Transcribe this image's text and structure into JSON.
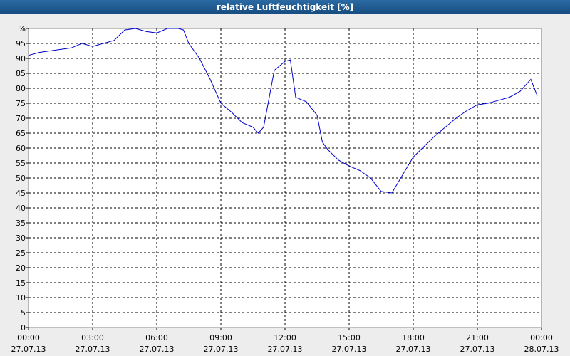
{
  "chart_data": {
    "type": "line",
    "title": "relative Luftfeuchtigkeit [%]",
    "xlim": [
      0,
      24
    ],
    "xticks": [
      {
        "value": 0,
        "label": [
          "00:00",
          "27.07.13"
        ]
      },
      {
        "value": 3,
        "label": [
          "03:00",
          "27.07.13"
        ]
      },
      {
        "value": 6,
        "label": [
          "06:00",
          "27.07.13"
        ]
      },
      {
        "value": 9,
        "label": [
          "09:00",
          "27.07.13"
        ]
      },
      {
        "value": 12,
        "label": [
          "12:00",
          "27.07.13"
        ]
      },
      {
        "value": 15,
        "label": [
          "15:00",
          "27.07.13"
        ]
      },
      {
        "value": 18,
        "label": [
          "18:00",
          "27.07.13"
        ]
      },
      {
        "value": 21,
        "label": [
          "21:00",
          "27.07.13"
        ]
      },
      {
        "value": 24,
        "label": [
          "00:00",
          "28.07.13"
        ]
      }
    ],
    "ylim": [
      0,
      100
    ],
    "yticks": [
      0,
      5,
      10,
      15,
      20,
      25,
      30,
      35,
      40,
      45,
      50,
      55,
      60,
      65,
      70,
      75,
      80,
      85,
      90,
      95,
      {
        "value": 100,
        "label": "%"
      }
    ],
    "grid": true,
    "series": [
      {
        "color": "#0000cc",
        "x": [
          0,
          0.5,
          1,
          1.5,
          2,
          2.5,
          3,
          3.5,
          4,
          4.5,
          5,
          5.5,
          6,
          6.5,
          7,
          7.25,
          7.5,
          8,
          8.5,
          9,
          9.5,
          10,
          10.5,
          10.75,
          11,
          11.5,
          12,
          12.25,
          12.5,
          13,
          13.5,
          13.75,
          14,
          14.5,
          15,
          15.5,
          16,
          16.5,
          17,
          17.5,
          18,
          18.5,
          19,
          19.5,
          20,
          20.5,
          21,
          21.5,
          22,
          22.5,
          23,
          23.5,
          23.8
        ],
        "values": [
          91,
          92,
          92.5,
          93,
          93.5,
          95,
          94,
          95,
          96,
          99.5,
          100,
          99,
          98.5,
          100,
          100,
          99.5,
          95,
          90,
          83,
          75,
          72,
          68.5,
          67,
          65,
          67,
          86,
          89,
          89.5,
          77,
          75.5,
          71,
          62,
          59.5,
          56,
          54,
          52.5,
          50,
          45.5,
          45,
          51,
          57,
          60.5,
          64,
          67,
          70,
          72.5,
          74.5,
          75,
          76,
          77,
          79,
          83,
          77.5
        ]
      }
    ]
  }
}
